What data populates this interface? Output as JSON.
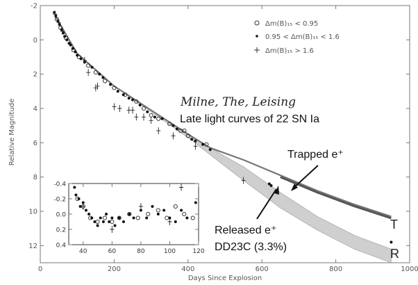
{
  "chart_data": [
    {
      "type": "scatter",
      "title": "Late light curves of 22 SN Ia",
      "subtitle": "Milne, The, Leising",
      "xlabel": "Days Since Explosion",
      "ylabel": "Relative Magnitude",
      "xlim": [
        0,
        1000
      ],
      "ylim": [
        13,
        -2
      ],
      "y_inverted": true,
      "x_ticks": [
        "0",
        "200",
        "400",
        "600",
        "800",
        "1000"
      ],
      "y_ticks": [
        "-2",
        "0",
        "2",
        "4",
        "6",
        "8",
        "10",
        "12"
      ],
      "legend_position": "top-right",
      "legend": [
        {
          "symbol": "open-circle",
          "label": "Δm(B)₁₅ < 0.95"
        },
        {
          "symbol": "filled-dot",
          "label": "0.95 < Δm(B)₁₅ < 1.6"
        },
        {
          "symbol": "plus",
          "label": "Δm(B)₁₅ > 1.6"
        }
      ],
      "annotations": {
        "trapped": "Trapped e⁺",
        "released_line1": "Released e⁺",
        "released_line2": "DD23C (3.3%)",
        "end_t": "T",
        "end_r": "R"
      },
      "model_curves": [
        {
          "name": "Trapped e⁺",
          "color": "#777777",
          "x": [
            40,
            100,
            200,
            300,
            400,
            460,
            550,
            650,
            750,
            850,
            950
          ],
          "y": [
            -1.4,
            0.8,
            2.7,
            4.1,
            5.5,
            6.3,
            7.0,
            7.9,
            8.8,
            9.6,
            10.3
          ]
        },
        {
          "name": "Released e⁺",
          "color": "#cfcfcf",
          "x": [
            40,
            100,
            200,
            300,
            400,
            460,
            550,
            650,
            750,
            850,
            950
          ],
          "y_upper": [
            -1.4,
            0.8,
            2.7,
            4.1,
            5.5,
            6.3,
            7.4,
            8.9,
            10.3,
            11.4,
            12.2
          ],
          "y_lower": [
            -1.4,
            0.8,
            2.7,
            4.2,
            5.7,
            6.7,
            8.2,
            9.8,
            11.1,
            12.2,
            13.0
          ]
        }
      ],
      "series": [
        {
          "name": "Δm(B)₁₅ < 0.95",
          "marker": "open-circle",
          "points": [
            [
              45,
              -1.2
            ],
            [
              55,
              -0.7
            ],
            [
              70,
              -0.1
            ],
            [
              90,
              0.6
            ],
            [
              105,
              1.0
            ],
            [
              130,
              1.5
            ],
            [
              150,
              1.9
            ],
            [
              175,
              2.4
            ],
            [
              200,
              2.8
            ],
            [
              230,
              3.2
            ],
            [
              260,
              3.6
            ],
            [
              280,
              4.0
            ],
            [
              300,
              4.4
            ],
            [
              320,
              4.6
            ],
            [
              350,
              4.9
            ],
            [
              380,
              5.3
            ],
            [
              390,
              5.3
            ],
            [
              400,
              5.6
            ],
            [
              450,
              6.1
            ]
          ]
        },
        {
          "name": "0.95 < Δm(B)₁₅ < 1.6",
          "marker": "filled-dot",
          "points": [
            [
              38,
              -1.6
            ],
            [
              42,
              -1.4
            ],
            [
              48,
              -1.1
            ],
            [
              52,
              -0.9
            ],
            [
              58,
              -0.6
            ],
            [
              62,
              -0.4
            ],
            [
              66,
              -0.2
            ],
            [
              72,
              0.0
            ],
            [
              78,
              0.2
            ],
            [
              82,
              0.3
            ],
            [
              88,
              0.5
            ],
            [
              95,
              0.7
            ],
            [
              100,
              0.9
            ],
            [
              110,
              1.1
            ],
            [
              120,
              1.3
            ],
            [
              140,
              1.6
            ],
            [
              160,
              2.0
            ],
            [
              170,
              2.2
            ],
            [
              190,
              2.6
            ],
            [
              210,
              3.0
            ],
            [
              225,
              3.2
            ],
            [
              240,
              3.4
            ],
            [
              250,
              3.5
            ],
            [
              270,
              3.8
            ],
            [
              290,
              4.2
            ],
            [
              310,
              4.5
            ],
            [
              330,
              4.6
            ],
            [
              360,
              5.0
            ],
            [
              370,
              5.2
            ],
            [
              410,
              5.8
            ],
            [
              420,
              5.9
            ],
            [
              440,
              6.1
            ],
            [
              460,
              6.4
            ],
            [
              620,
              8.4
            ],
            [
              625,
              8.5
            ],
            [
              950,
              11.8
            ]
          ]
        },
        {
          "name": "Δm(B)₁₅ > 1.6",
          "marker": "plus",
          "points": [
            [
              40,
              -1.5
            ],
            [
              50,
              -1.0
            ],
            [
              60,
              -0.5
            ],
            [
              120,
              1.2
            ],
            [
              130,
              1.9
            ],
            [
              150,
              2.8
            ],
            [
              155,
              2.7
            ],
            [
              200,
              3.9
            ],
            [
              215,
              4.0
            ],
            [
              240,
              4.1
            ],
            [
              250,
              4.1
            ],
            [
              260,
              4.5
            ],
            [
              280,
              4.5
            ],
            [
              300,
              4.7
            ],
            [
              320,
              5.3
            ],
            [
              360,
              5.6
            ],
            [
              420,
              6.2
            ],
            [
              550,
              8.2
            ]
          ]
        }
      ]
    },
    {
      "type": "scatter",
      "title": "",
      "xlim": [
        30,
        120
      ],
      "ylim": [
        0.4,
        -0.4
      ],
      "x_ticks": [
        "40",
        "60",
        "80",
        "100",
        "120"
      ],
      "y_ticks": [
        "-0.4",
        "-0.2",
        "0.0",
        "0.2",
        "0.4"
      ],
      "series": [
        {
          "name": "Δm(B)₁₅ < 0.95",
          "marker": "open-circle",
          "points": [
            [
              36,
              -0.2
            ],
            [
              40,
              -0.1
            ],
            [
              45,
              0.05
            ],
            [
              50,
              0.1
            ],
            [
              55,
              0.05
            ],
            [
              60,
              0.1
            ],
            [
              65,
              0.05
            ],
            [
              72,
              0.0
            ],
            [
              78,
              0.05
            ],
            [
              85,
              0.0
            ],
            [
              92,
              -0.05
            ],
            [
              98,
              0.05
            ],
            [
              104,
              -0.1
            ],
            [
              110,
              0.0
            ],
            [
              116,
              0.05
            ]
          ]
        },
        {
          "name": "0.95 < Δm(B)₁₅ < 1.6",
          "marker": "filled-dot",
          "points": [
            [
              34,
              -0.35
            ],
            [
              35,
              -0.25
            ],
            [
              37,
              -0.2
            ],
            [
              38,
              -0.1
            ],
            [
              40,
              -0.15
            ],
            [
              42,
              -0.05
            ],
            [
              44,
              0.0
            ],
            [
              46,
              0.05
            ],
            [
              48,
              0.1
            ],
            [
              50,
              0.15
            ],
            [
              52,
              0.05
            ],
            [
              54,
              0.1
            ],
            [
              56,
              0.0
            ],
            [
              58,
              0.1
            ],
            [
              60,
              0.05
            ],
            [
              62,
              0.15
            ],
            [
              65,
              0.05
            ],
            [
              68,
              0.1
            ],
            [
              72,
              0.0
            ],
            [
              75,
              0.05
            ],
            [
              80,
              -0.05
            ],
            [
              84,
              0.05
            ],
            [
              88,
              -0.1
            ],
            [
              92,
              0.0
            ],
            [
              96,
              -0.05
            ],
            [
              100,
              0.05
            ],
            [
              104,
              0.1
            ],
            [
              108,
              -0.05
            ],
            [
              112,
              0.05
            ],
            [
              118,
              -0.15
            ]
          ]
        },
        {
          "name": "Δm(B)₁₅ > 1.6",
          "marker": "plus",
          "points": [
            [
              40,
              -0.1
            ],
            [
              60,
              0.2
            ],
            [
              80,
              -0.1
            ],
            [
              100,
              0.1
            ],
            [
              108,
              -0.35
            ]
          ]
        }
      ]
    }
  ]
}
